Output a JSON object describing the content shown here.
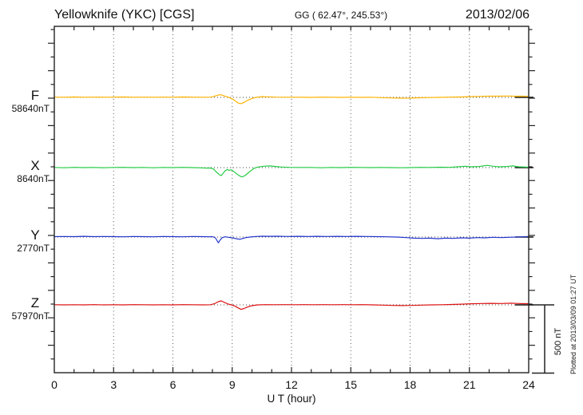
{
  "header": {
    "station_title": "Yellowknife (YKC)  [CGS]",
    "coords_label": "GG ( 62.47°, 245.53°)",
    "date": "2013/02/06"
  },
  "axis": {
    "xlabel": "U T (hour)",
    "hour_ticks": [
      0,
      3,
      6,
      9,
      12,
      15,
      18,
      21,
      24
    ],
    "scale_bar_label": "500 nT",
    "scale_bar_nT": 500
  },
  "footer": {
    "plotted_at": "Plotted at 2013/03/09 01:27 UT"
  },
  "chart_data": {
    "type": "line",
    "title": "Yellowknife (YKC) [CGS] magnetogram 2013/02/06",
    "xlabel": "U T (hour)",
    "x_range": [
      0,
      24
    ],
    "grid_hours": [
      3,
      6,
      9,
      12,
      15,
      18,
      21
    ],
    "grid": "dotted",
    "nT_per_division": 100,
    "scale_bar_nT": 500,
    "series": [
      {
        "component": "F",
        "baseline_label": "58640nT",
        "baseline_nT": 58640,
        "color": "#FFB300",
        "points": [
          [
            0,
            2
          ],
          [
            0.5,
            1
          ],
          [
            1,
            3
          ],
          [
            1.5,
            1
          ],
          [
            2,
            2
          ],
          [
            2.5,
            1
          ],
          [
            3,
            2
          ],
          [
            3.5,
            3
          ],
          [
            4,
            1
          ],
          [
            4.5,
            2
          ],
          [
            5,
            1
          ],
          [
            5.5,
            2
          ],
          [
            6,
            1
          ],
          [
            6.5,
            3
          ],
          [
            7,
            2
          ],
          [
            7.5,
            1
          ],
          [
            7.9,
            2
          ],
          [
            8.1,
            8
          ],
          [
            8.3,
            17
          ],
          [
            8.45,
            19
          ],
          [
            8.6,
            10
          ],
          [
            8.75,
            4
          ],
          [
            8.9,
            -4
          ],
          [
            9.1,
            -20
          ],
          [
            9.3,
            -41
          ],
          [
            9.45,
            -46
          ],
          [
            9.6,
            -36
          ],
          [
            9.8,
            -20
          ],
          [
            10,
            -8
          ],
          [
            10.2,
            0
          ],
          [
            10.5,
            5
          ],
          [
            10.8,
            4
          ],
          [
            11.2,
            2
          ],
          [
            11.8,
            1
          ],
          [
            12.4,
            1
          ],
          [
            13,
            0
          ],
          [
            13.5,
            2
          ],
          [
            14,
            1
          ],
          [
            14.5,
            0
          ],
          [
            15,
            1
          ],
          [
            15.5,
            0
          ],
          [
            16,
            1
          ],
          [
            16.5,
            -2
          ],
          [
            17,
            -4
          ],
          [
            17.5,
            -6
          ],
          [
            18,
            -5
          ],
          [
            18.5,
            -3
          ],
          [
            19,
            -1
          ],
          [
            19.5,
            0
          ],
          [
            20,
            2
          ],
          [
            20.5,
            3
          ],
          [
            21,
            5
          ],
          [
            21.5,
            7
          ],
          [
            22,
            9
          ],
          [
            22.5,
            9
          ],
          [
            23,
            10
          ],
          [
            23.3,
            8
          ],
          [
            23.6,
            9
          ],
          [
            24,
            7
          ]
        ]
      },
      {
        "component": "X",
        "baseline_label": "8640nT",
        "baseline_nT": 8640,
        "color": "#22CC44",
        "points": [
          [
            0,
            1
          ],
          [
            0.5,
            -1
          ],
          [
            1,
            2
          ],
          [
            1.5,
            0
          ],
          [
            2,
            1
          ],
          [
            2.5,
            -1
          ],
          [
            3,
            1
          ],
          [
            3.5,
            2
          ],
          [
            4,
            0
          ],
          [
            4.5,
            1
          ],
          [
            5,
            -1
          ],
          [
            5.5,
            1
          ],
          [
            6,
            0
          ],
          [
            6.5,
            2
          ],
          [
            7,
            0
          ],
          [
            7.4,
            -2
          ],
          [
            7.7,
            -4
          ],
          [
            7.9,
            -3
          ],
          [
            8.05,
            -10
          ],
          [
            8.2,
            -32
          ],
          [
            8.35,
            -52
          ],
          [
            8.45,
            -58
          ],
          [
            8.55,
            -40
          ],
          [
            8.65,
            -22
          ],
          [
            8.75,
            -14
          ],
          [
            8.85,
            -20
          ],
          [
            8.95,
            -16
          ],
          [
            9.1,
            -30
          ],
          [
            9.25,
            -48
          ],
          [
            9.4,
            -62
          ],
          [
            9.5,
            -68
          ],
          [
            9.65,
            -58
          ],
          [
            9.8,
            -40
          ],
          [
            9.95,
            -22
          ],
          [
            10.1,
            -6
          ],
          [
            10.3,
            4
          ],
          [
            10.6,
            10
          ],
          [
            10.9,
            12
          ],
          [
            11.2,
            8
          ],
          [
            11.5,
            4
          ],
          [
            11.9,
            2
          ],
          [
            12.4,
            1
          ],
          [
            13,
            1
          ],
          [
            13.5,
            -1
          ],
          [
            14,
            1
          ],
          [
            14.5,
            0
          ],
          [
            15,
            2
          ],
          [
            15.5,
            1
          ],
          [
            16,
            0
          ],
          [
            16.5,
            1
          ],
          [
            17,
            0
          ],
          [
            17.5,
            -1
          ],
          [
            18,
            0
          ],
          [
            18.5,
            2
          ],
          [
            19,
            1
          ],
          [
            19.5,
            3
          ],
          [
            20,
            2
          ],
          [
            20.4,
            6
          ],
          [
            20.8,
            10
          ],
          [
            21.1,
            6
          ],
          [
            21.5,
            8
          ],
          [
            21.9,
            16
          ],
          [
            22.2,
            10
          ],
          [
            22.5,
            6
          ],
          [
            22.9,
            8
          ],
          [
            23.2,
            12
          ],
          [
            23.5,
            6
          ],
          [
            23.8,
            4
          ],
          [
            24,
            3
          ]
        ]
      },
      {
        "component": "Y",
        "baseline_label": "2770nT",
        "baseline_nT": 2770,
        "color": "#2233CC",
        "points": [
          [
            0,
            3
          ],
          [
            0.5,
            4
          ],
          [
            1,
            3
          ],
          [
            1.5,
            5
          ],
          [
            2,
            3
          ],
          [
            2.5,
            4
          ],
          [
            3,
            3
          ],
          [
            3.5,
            2
          ],
          [
            4,
            4
          ],
          [
            4.5,
            3
          ],
          [
            5,
            2
          ],
          [
            5.5,
            4
          ],
          [
            6,
            3
          ],
          [
            6.5,
            2
          ],
          [
            7,
            4
          ],
          [
            7.5,
            3
          ],
          [
            7.8,
            2
          ],
          [
            8,
            3
          ],
          [
            8.15,
            -6
          ],
          [
            8.3,
            -42
          ],
          [
            8.4,
            -20
          ],
          [
            8.5,
            -4
          ],
          [
            8.65,
            2
          ],
          [
            8.8,
            -2
          ],
          [
            9,
            -6
          ],
          [
            9.2,
            -12
          ],
          [
            9.4,
            -16
          ],
          [
            9.55,
            -10
          ],
          [
            9.7,
            -4
          ],
          [
            9.9,
            0
          ],
          [
            10.2,
            4
          ],
          [
            10.5,
            6
          ],
          [
            10.9,
            5
          ],
          [
            11.3,
            6
          ],
          [
            11.8,
            4
          ],
          [
            12.3,
            5
          ],
          [
            12.8,
            4
          ],
          [
            13.3,
            5
          ],
          [
            13.8,
            4
          ],
          [
            14.3,
            5
          ],
          [
            14.8,
            4
          ],
          [
            15.3,
            5
          ],
          [
            15.8,
            4
          ],
          [
            16.3,
            3
          ],
          [
            16.8,
            2
          ],
          [
            17.3,
            0
          ],
          [
            17.8,
            -4
          ],
          [
            18.2,
            -8
          ],
          [
            18.6,
            -10
          ],
          [
            19,
            -8
          ],
          [
            19.4,
            -12
          ],
          [
            19.8,
            -8
          ],
          [
            20.2,
            -10
          ],
          [
            20.6,
            -6
          ],
          [
            21,
            -8
          ],
          [
            21.4,
            -4
          ],
          [
            21.8,
            -6
          ],
          [
            22.2,
            -2
          ],
          [
            22.6,
            -4
          ],
          [
            23,
            -2
          ],
          [
            23.4,
            0
          ],
          [
            23.7,
            2
          ],
          [
            24,
            4
          ]
        ]
      },
      {
        "component": "Z",
        "baseline_label": "57970nT",
        "baseline_nT": 57970,
        "color": "#DD1111",
        "points": [
          [
            0,
            1
          ],
          [
            0.5,
            0
          ],
          [
            1,
            1
          ],
          [
            1.5,
            0
          ],
          [
            2,
            2
          ],
          [
            2.5,
            0
          ],
          [
            3,
            1
          ],
          [
            3.5,
            0
          ],
          [
            4,
            2
          ],
          [
            4.5,
            1
          ],
          [
            5,
            0
          ],
          [
            5.5,
            1
          ],
          [
            6,
            0
          ],
          [
            6.5,
            2
          ],
          [
            7,
            1
          ],
          [
            7.5,
            0
          ],
          [
            7.9,
            1
          ],
          [
            8.1,
            8
          ],
          [
            8.3,
            23
          ],
          [
            8.45,
            29
          ],
          [
            8.6,
            18
          ],
          [
            8.8,
            6
          ],
          [
            9,
            -2
          ],
          [
            9.15,
            -10
          ],
          [
            9.3,
            -22
          ],
          [
            9.45,
            -33
          ],
          [
            9.6,
            -26
          ],
          [
            9.8,
            -14
          ],
          [
            10,
            -6
          ],
          [
            10.3,
            0
          ],
          [
            10.7,
            2
          ],
          [
            11.1,
            1
          ],
          [
            11.6,
            2
          ],
          [
            12.1,
            1
          ],
          [
            12.6,
            2
          ],
          [
            13.1,
            1
          ],
          [
            13.6,
            2
          ],
          [
            14.1,
            1
          ],
          [
            14.6,
            2
          ],
          [
            15.1,
            1
          ],
          [
            15.6,
            2
          ],
          [
            16.1,
            0
          ],
          [
            16.6,
            -2
          ],
          [
            17.1,
            -4
          ],
          [
            17.6,
            -5
          ],
          [
            18.1,
            -4
          ],
          [
            18.6,
            -2
          ],
          [
            19.1,
            0
          ],
          [
            19.6,
            1
          ],
          [
            20.1,
            3
          ],
          [
            20.6,
            5
          ],
          [
            21.1,
            8
          ],
          [
            21.6,
            10
          ],
          [
            22.1,
            11
          ],
          [
            22.6,
            10
          ],
          [
            23.1,
            12
          ],
          [
            23.5,
            10
          ],
          [
            23.8,
            9
          ],
          [
            24,
            9
          ]
        ]
      }
    ]
  }
}
